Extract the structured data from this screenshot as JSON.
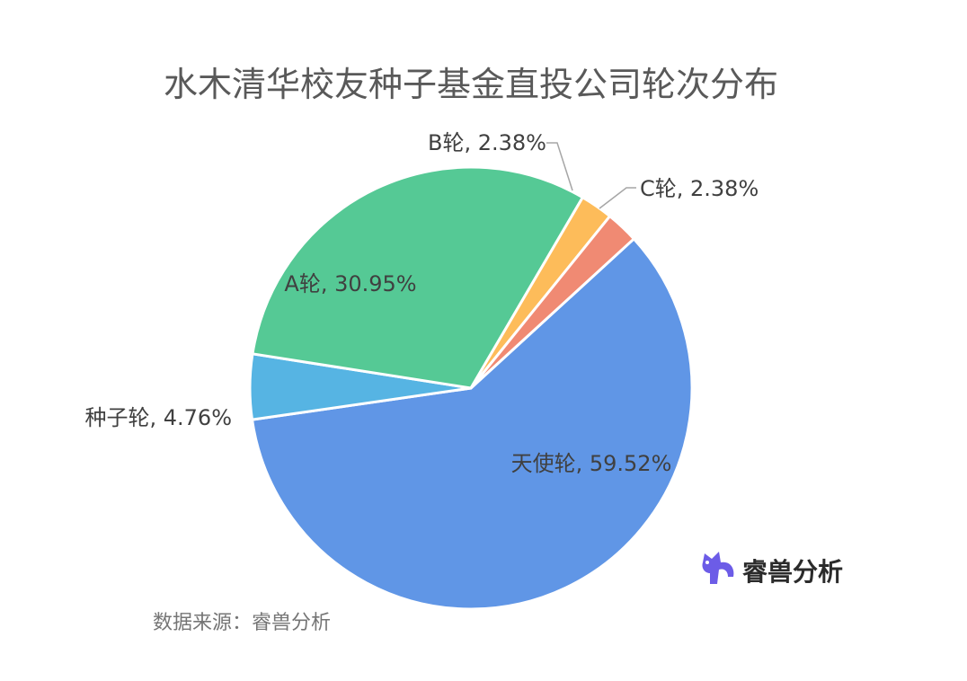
{
  "chart_data": {
    "type": "pie",
    "title": "水木清华校友种子基金直投公司轮次分布",
    "slices": [
      {
        "name": "天使轮",
        "value": 59.52,
        "label": "天使轮, 59.52%",
        "color": "#6096e6"
      },
      {
        "name": "种子轮",
        "value": 4.76,
        "label": "种子轮, 4.76%",
        "color": "#56b4e3"
      },
      {
        "name": "A轮",
        "value": 30.95,
        "label": "A轮, 30.95%",
        "color": "#55c995"
      },
      {
        "name": "B轮",
        "value": 2.38,
        "label": "B轮, 2.38%",
        "color": "#fdbc5a"
      },
      {
        "name": "C轮",
        "value": 2.38,
        "label": "C轮, 2.38%",
        "color": "#f08a73"
      }
    ],
    "legend": "none",
    "data_labels": true
  },
  "footer": {
    "source": "数据来源：睿兽分析"
  },
  "watermark": {
    "text": "睿兽分析",
    "icon": "rui-beast-logo-icon",
    "color": "#6c5ce7"
  }
}
